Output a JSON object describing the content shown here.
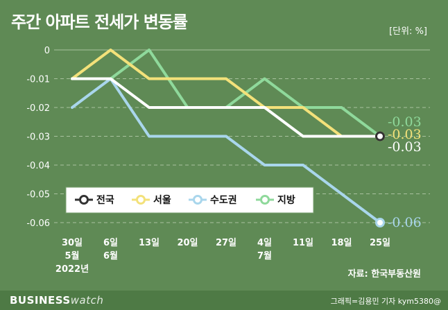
{
  "title": "주간 아파트 전세가 변동률",
  "unit_label": "[단위: %]",
  "source": "자료: 한국부동산원",
  "brand": {
    "bold": "BUSINESS",
    "light": "watch"
  },
  "credit": "그래픽=김용민 기자 kym5380@",
  "colors": {
    "background": "#5f8a55",
    "grid": "#a9c29f",
    "text": "#ffffff",
    "legend_bg": "#ffffff"
  },
  "chart_data": {
    "type": "line",
    "categories": [
      [
        "30일",
        "5월",
        "2022년"
      ],
      [
        "6일",
        "6월"
      ],
      [
        "13일"
      ],
      [
        "20일"
      ],
      [
        "27일"
      ],
      [
        "4일",
        "7월"
      ],
      [
        "11일"
      ],
      [
        "18일"
      ],
      [
        "25일"
      ]
    ],
    "ylim": [
      -0.06,
      0
    ],
    "yticks": [
      "0",
      "-0.01",
      "-0.02",
      "-0.03",
      "-0.04",
      "-0.05",
      "-0.06"
    ],
    "grid": true,
    "legend_position": "bottom-left",
    "series": [
      {
        "name": "전국",
        "color": "#ffffff",
        "values": [
          -0.01,
          -0.01,
          -0.02,
          -0.02,
          -0.02,
          -0.02,
          -0.03,
          -0.03,
          -0.03
        ],
        "end_label": "-0.03"
      },
      {
        "name": "서울",
        "color": "#f3e17a",
        "values": [
          -0.01,
          0,
          -0.01,
          -0.01,
          -0.01,
          -0.02,
          -0.02,
          -0.03,
          -0.03
        ],
        "end_label": "-0.03"
      },
      {
        "name": "수도권",
        "color": "#a9d6ec",
        "values": [
          -0.02,
          -0.01,
          -0.03,
          -0.03,
          -0.03,
          -0.04,
          -0.04,
          -0.05,
          -0.06
        ],
        "end_label": "-0.06"
      },
      {
        "name": "지방",
        "color": "#8fd99b",
        "values": [
          -0.01,
          -0.01,
          0,
          -0.02,
          -0.02,
          -0.01,
          -0.02,
          -0.02,
          -0.03
        ],
        "end_label": "-0.03"
      }
    ]
  }
}
